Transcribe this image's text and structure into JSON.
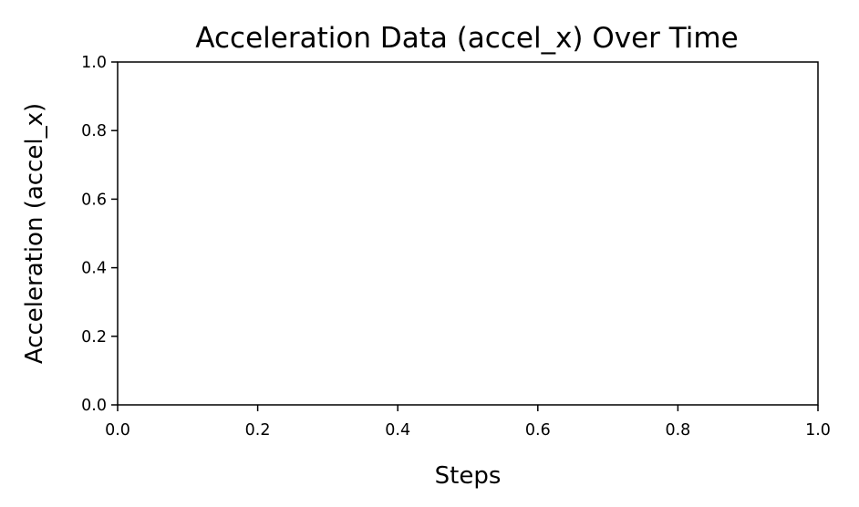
{
  "chart_data": {
    "type": "line",
    "title": "Acceleration Data (accel_x) Over Time",
    "xlabel": "Steps",
    "ylabel": "Acceleration (accel_x)",
    "xlim": [
      0.0,
      1.0
    ],
    "ylim": [
      0.0,
      1.0
    ],
    "xticks": [
      0.0,
      0.2,
      0.4,
      0.6,
      0.8,
      1.0
    ],
    "yticks": [
      0.0,
      0.2,
      0.4,
      0.6,
      0.8,
      1.0
    ],
    "xtick_labels": [
      "0.0",
      "0.2",
      "0.4",
      "0.6",
      "0.8",
      "1.0"
    ],
    "ytick_labels": [
      "0.0",
      "0.2",
      "0.4",
      "0.6",
      "0.8",
      "1.0"
    ],
    "grid": false,
    "series": [],
    "colors": {
      "axes": "#000000",
      "background": "#ffffff"
    }
  }
}
